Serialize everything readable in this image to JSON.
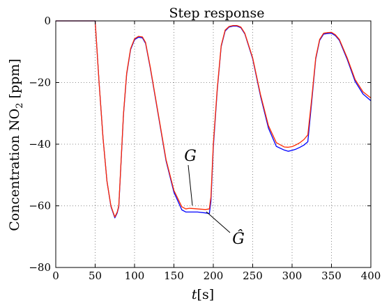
{
  "chart_data": {
    "type": "line",
    "title": "Step response",
    "ylabel": "Concentration NO",
    "ylabel_sub": "2",
    "ylabel_unit": " [ppm]",
    "xlabel_var": "t",
    "xlabel_unit": "[s]",
    "xlim": [
      0,
      400
    ],
    "ylim": [
      -80,
      0
    ],
    "xticks": [
      0,
      50,
      100,
      150,
      200,
      250,
      300,
      350,
      400
    ],
    "yticks": [
      0,
      -20,
      -40,
      -60,
      -80
    ],
    "xtick_labels": [
      "0",
      "50",
      "100",
      "150",
      "200",
      "250",
      "300",
      "350",
      "400"
    ],
    "ytick_labels": [
      "0",
      "−20",
      "−40",
      "−60",
      "−80"
    ],
    "grid": true,
    "series": [
      {
        "key": "G",
        "color": "#ff2a00",
        "x": [
          0,
          49,
          50,
          52,
          55,
          60,
          65,
          70,
          75,
          78,
          80,
          83,
          86,
          90,
          95,
          100,
          105,
          110,
          114,
          120,
          130,
          140,
          150,
          160,
          165,
          170,
          180,
          190,
          195,
          197,
          200,
          205,
          210,
          215,
          220,
          225,
          230,
          235,
          240,
          250,
          260,
          270,
          280,
          290,
          295,
          300,
          305,
          310,
          315,
          320,
          325,
          330,
          335,
          340,
          345,
          350,
          355,
          360,
          370,
          380,
          390,
          400
        ],
        "y": [
          0,
          0,
          0,
          -8,
          -20,
          -38,
          -52,
          -60,
          -63.6,
          -62,
          -60,
          -45,
          -30,
          -17,
          -9,
          -5.8,
          -5,
          -5.2,
          -7,
          -15,
          -30,
          -45,
          -55,
          -60.3,
          -61,
          -60.8,
          -61,
          -61.2,
          -61,
          -57,
          -40,
          -22,
          -8,
          -3,
          -1.8,
          -1.5,
          -1.5,
          -2,
          -4,
          -12,
          -24,
          -34,
          -39.5,
          -40.9,
          -41,
          -40.8,
          -40.2,
          -39.5,
          -38.5,
          -37,
          -25,
          -12,
          -6,
          -4,
          -3.8,
          -3.7,
          -4.5,
          -6,
          -12,
          -19,
          -23,
          -25
        ]
      },
      {
        "key": "Ghat",
        "color": "#0000ff",
        "x": [
          0,
          49,
          50,
          52,
          55,
          60,
          65,
          70,
          75,
          78,
          80,
          83,
          86,
          90,
          95,
          100,
          105,
          110,
          114,
          120,
          130,
          140,
          150,
          160,
          165,
          170,
          180,
          190,
          195,
          197,
          200,
          205,
          210,
          215,
          220,
          225,
          230,
          235,
          240,
          250,
          260,
          270,
          280,
          290,
          295,
          300,
          305,
          310,
          315,
          320,
          325,
          330,
          335,
          340,
          345,
          350,
          355,
          360,
          370,
          380,
          390,
          400
        ],
        "y": [
          0,
          0,
          0,
          -8,
          -20,
          -38,
          -52,
          -60.2,
          -63.9,
          -62.3,
          -60.3,
          -45.3,
          -30.3,
          -17.3,
          -9.3,
          -6.1,
          -5.3,
          -5.5,
          -7.3,
          -15.3,
          -30.3,
          -45.4,
          -55.6,
          -61.3,
          -62,
          -62,
          -62,
          -62.3,
          -62.5,
          -58.5,
          -41,
          -22.5,
          -8.3,
          -3.3,
          -2,
          -1.7,
          -1.7,
          -2.2,
          -4.2,
          -12.3,
          -24.5,
          -34.8,
          -40.7,
          -41.9,
          -42.3,
          -42,
          -41.6,
          -41,
          -40.3,
          -39.2,
          -26,
          -12.4,
          -6.3,
          -4.3,
          -4.1,
          -4,
          -4.8,
          -6.3,
          -12.5,
          -19.6,
          -23.7,
          -25.9
        ]
      }
    ],
    "annotations": [
      {
        "label": "G"
      },
      {
        "label": "Ĝ"
      }
    ]
  }
}
